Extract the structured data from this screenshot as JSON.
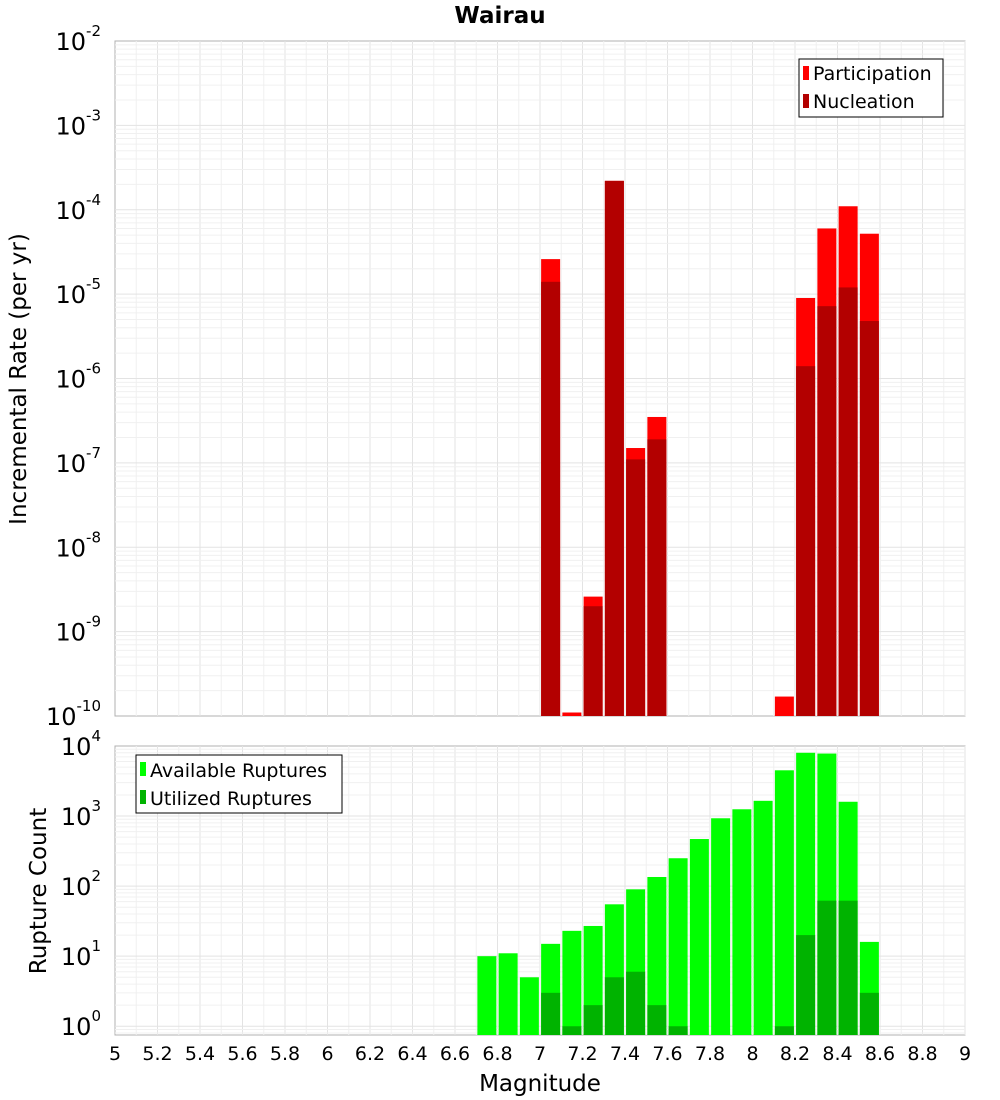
{
  "chart_data": [
    {
      "type": "bar",
      "title": "Wairau",
      "xlabel": "",
      "ylabel": "Incremental Rate (per yr)",
      "yscale": "log",
      "ylim": [
        1e-10,
        0.01
      ],
      "xlim": [
        5,
        9
      ],
      "grid": true,
      "legend_position": "top-right",
      "x": [
        7.05,
        7.15,
        7.25,
        7.35,
        7.45,
        7.55,
        8.15,
        8.25,
        8.35,
        8.45,
        8.55
      ],
      "series": [
        {
          "name": "Participation",
          "color": "#ff0000",
          "values": [
            2.6e-05,
            1.1e-10,
            2.6e-09,
            0.00022,
            1.5e-07,
            3.5e-07,
            1.7e-10,
            9e-06,
            6e-05,
            0.00011,
            5.2e-05
          ]
        },
        {
          "name": "Nucleation",
          "color": "#b30000",
          "values": [
            1.4e-05,
            1e-10,
            2e-09,
            0.00022,
            1.1e-07,
            1.9e-07,
            1e-10,
            1.4e-06,
            7.2e-06,
            1.2e-05,
            4.8e-06
          ]
        }
      ]
    },
    {
      "type": "bar",
      "title": "",
      "xlabel": "Magnitude",
      "ylabel": "Rupture Count",
      "yscale": "log",
      "ylim": [
        0.75,
        10000
      ],
      "xlim": [
        5,
        9
      ],
      "grid": true,
      "legend_position": "top-left",
      "x": [
        6.75,
        6.85,
        6.95,
        7.05,
        7.15,
        7.25,
        7.35,
        7.45,
        7.55,
        7.65,
        7.75,
        7.85,
        7.95,
        8.05,
        8.15,
        8.25,
        8.35,
        8.45,
        8.55
      ],
      "series": [
        {
          "name": "Available Ruptures",
          "color": "#00ff00",
          "values": [
            10,
            11,
            5,
            15,
            23,
            27,
            55,
            90,
            135,
            250,
            470,
            930,
            1250,
            1650,
            4500,
            8000,
            7800,
            1600,
            16
          ]
        },
        {
          "name": "Utilized Ruptures",
          "color": "#00b300",
          "values": [
            0,
            0,
            0,
            3,
            1,
            2,
            5,
            6,
            2,
            1,
            0,
            0,
            0,
            0,
            1,
            20,
            62,
            62,
            3
          ]
        }
      ]
    }
  ],
  "x_ticks": [
    "5",
    "5.2",
    "5.4",
    "5.6",
    "5.8",
    "6",
    "6.2",
    "6.4",
    "6.6",
    "6.8",
    "7",
    "7.2",
    "7.4",
    "7.6",
    "7.8",
    "8",
    "8.2",
    "8.4",
    "8.6",
    "8.8",
    "9"
  ],
  "top_y_ticks": [
    {
      "base": "10",
      "exp": "-2"
    },
    {
      "base": "10",
      "exp": "-3"
    },
    {
      "base": "10",
      "exp": "-4"
    },
    {
      "base": "10",
      "exp": "-5"
    },
    {
      "base": "10",
      "exp": "-6"
    },
    {
      "base": "10",
      "exp": "-7"
    },
    {
      "base": "10",
      "exp": "-8"
    },
    {
      "base": "10",
      "exp": "-9"
    },
    {
      "base": "10",
      "exp": "-10"
    }
  ],
  "bottom_y_ticks": [
    {
      "base": "10",
      "exp": "4"
    },
    {
      "base": "10",
      "exp": "3"
    },
    {
      "base": "10",
      "exp": "2"
    },
    {
      "base": "10",
      "exp": "1"
    },
    {
      "base": "10",
      "exp": "0"
    }
  ]
}
